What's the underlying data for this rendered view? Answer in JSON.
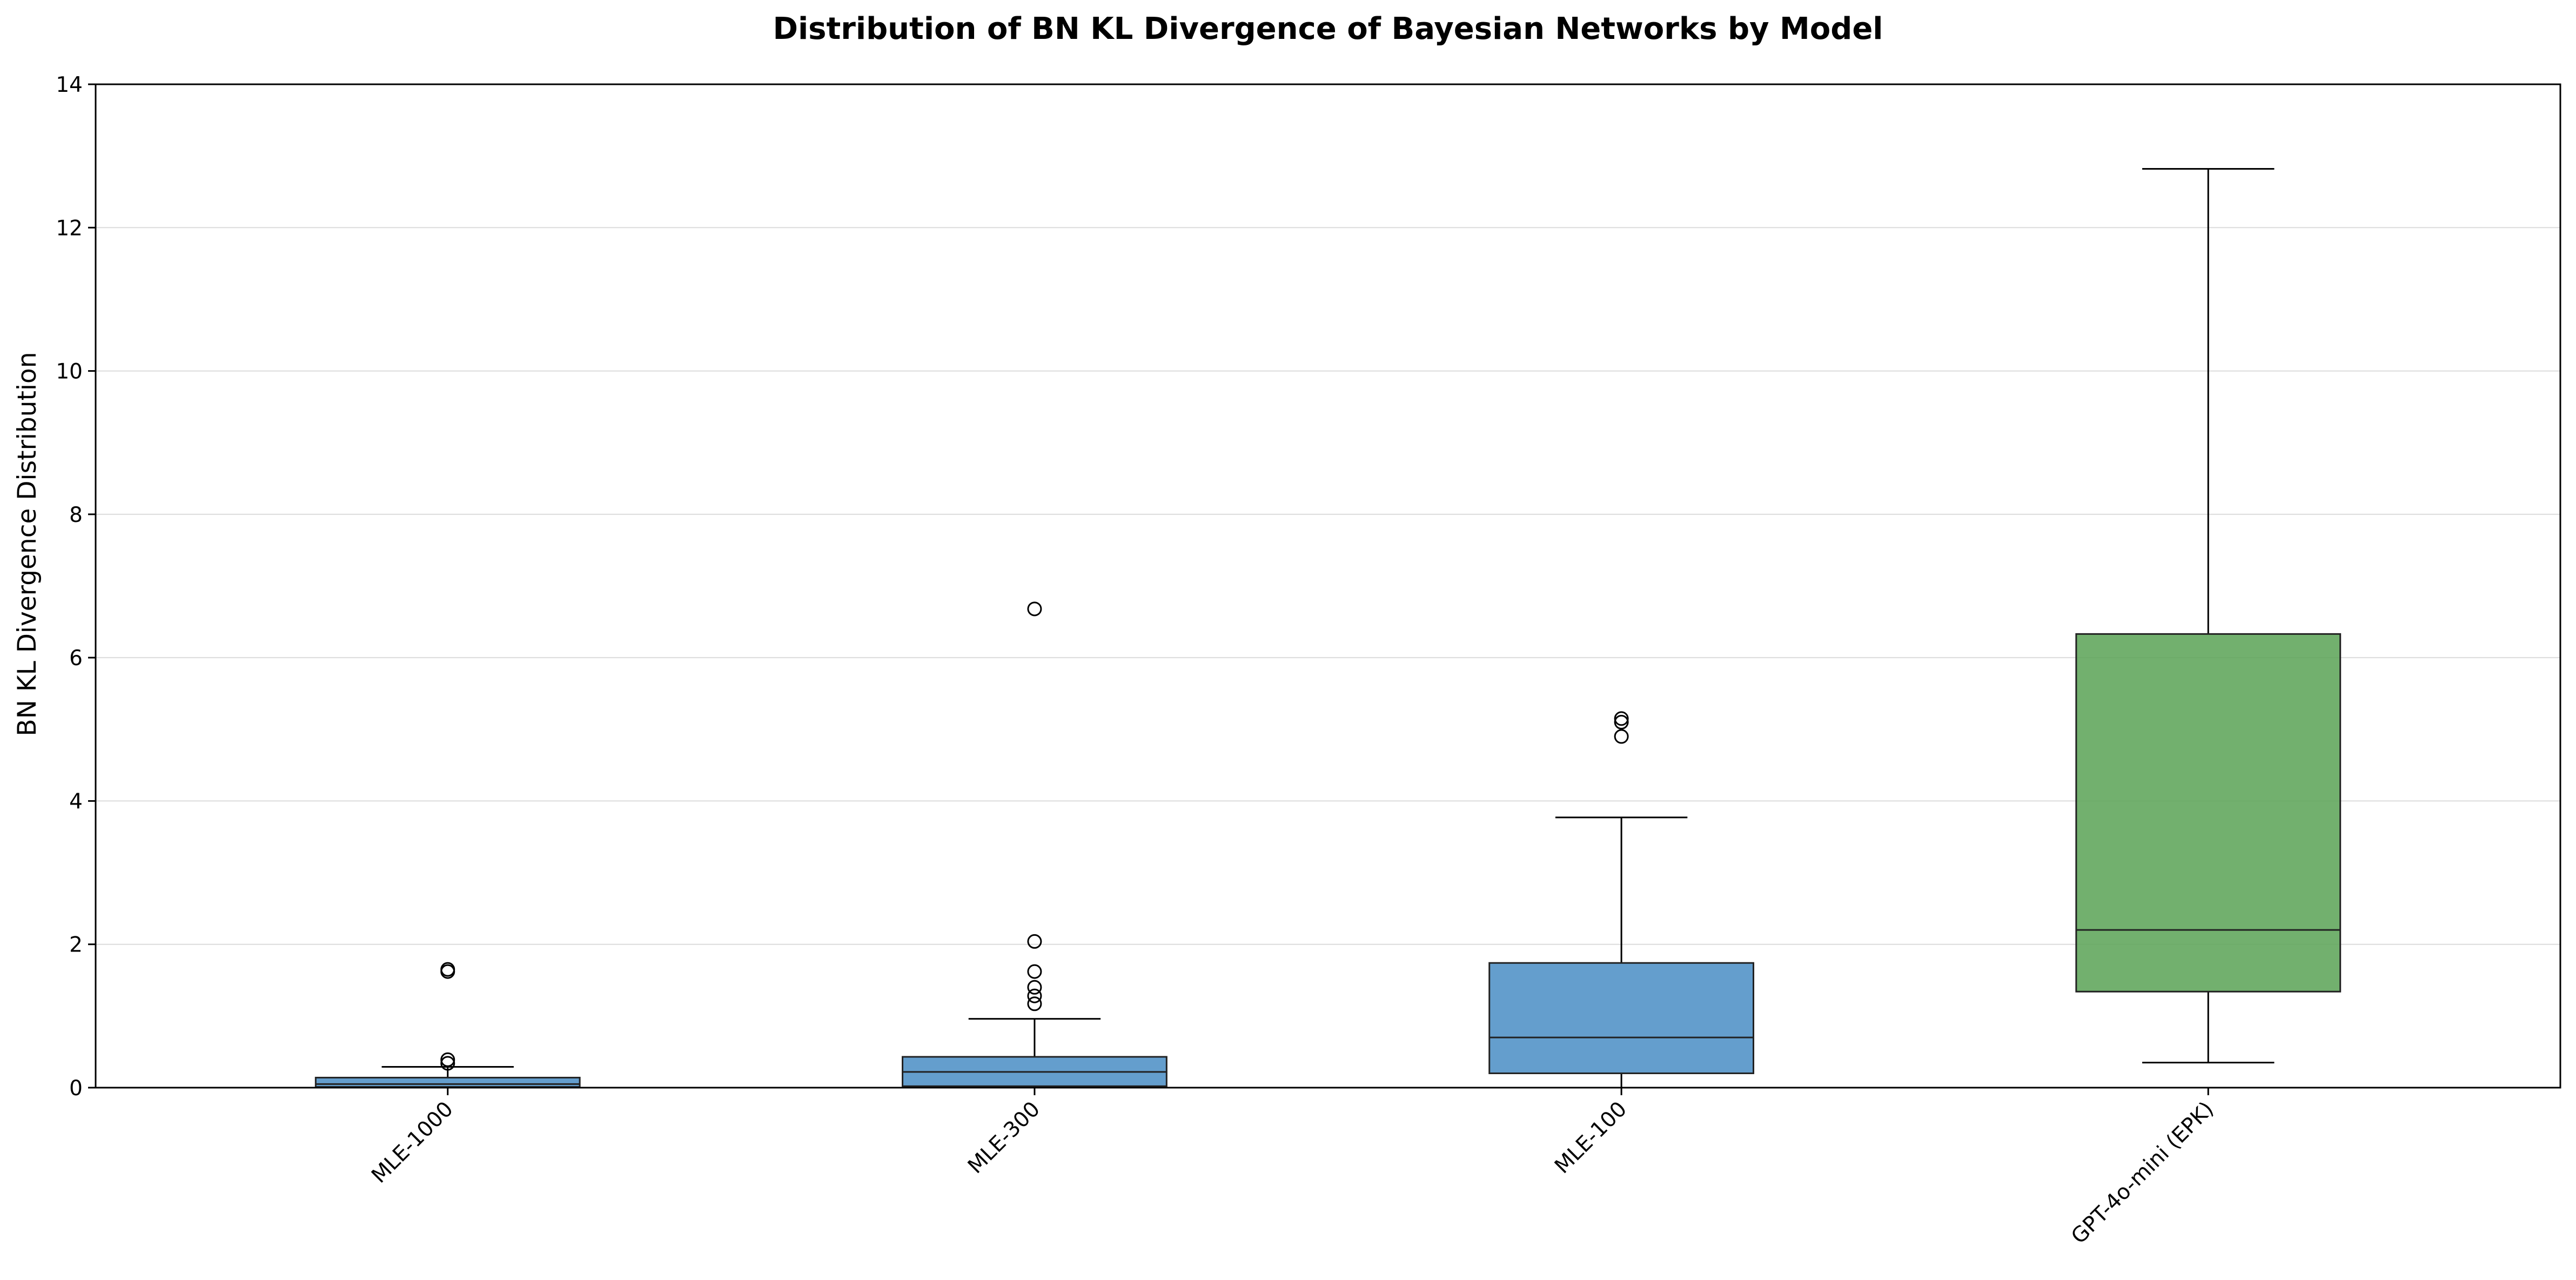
{
  "chart_data": {
    "type": "box",
    "title": "Distribution of BN KL Divergence of Bayesian Networks by Model",
    "xlabel": "",
    "ylabel": "BN KL Divergence Distribution",
    "ylim": [
      0,
      14
    ],
    "yticks": [
      "0",
      "2",
      "4",
      "6",
      "8",
      "10",
      "12",
      "14"
    ],
    "grid": "y",
    "legend": "none",
    "categories": [
      "MLE-1000",
      "MLE-300",
      "MLE-100",
      "GPT-4o-mini (EPK)"
    ],
    "boxes": [
      {
        "category": "MLE-1000",
        "whisker_low": 0.0,
        "q1": 0.01,
        "median": 0.05,
        "q3": 0.14,
        "whisker_high": 0.29,
        "outliers": [
          0.34,
          0.39,
          1.62,
          1.65
        ],
        "color": "#4e91c6"
      },
      {
        "category": "MLE-300",
        "whisker_low": 0.0,
        "q1": 0.02,
        "median": 0.22,
        "q3": 0.43,
        "whisker_high": 0.96,
        "outliers": [
          1.17,
          1.28,
          1.4,
          1.62,
          2.04,
          6.68
        ],
        "color": "#4e91c6"
      },
      {
        "category": "MLE-100",
        "whisker_low": 0.0,
        "q1": 0.2,
        "median": 0.7,
        "q3": 1.74,
        "whisker_high": 3.77,
        "outliers": [
          4.9,
          5.1,
          5.15
        ],
        "color": "#4e91c6"
      },
      {
        "category": "GPT-4o-mini (EPK)",
        "whisker_low": 0.35,
        "q1": 1.34,
        "median": 2.2,
        "q3": 6.33,
        "whisker_high": 12.82,
        "outliers": [],
        "color": "#5fa55a"
      }
    ]
  }
}
